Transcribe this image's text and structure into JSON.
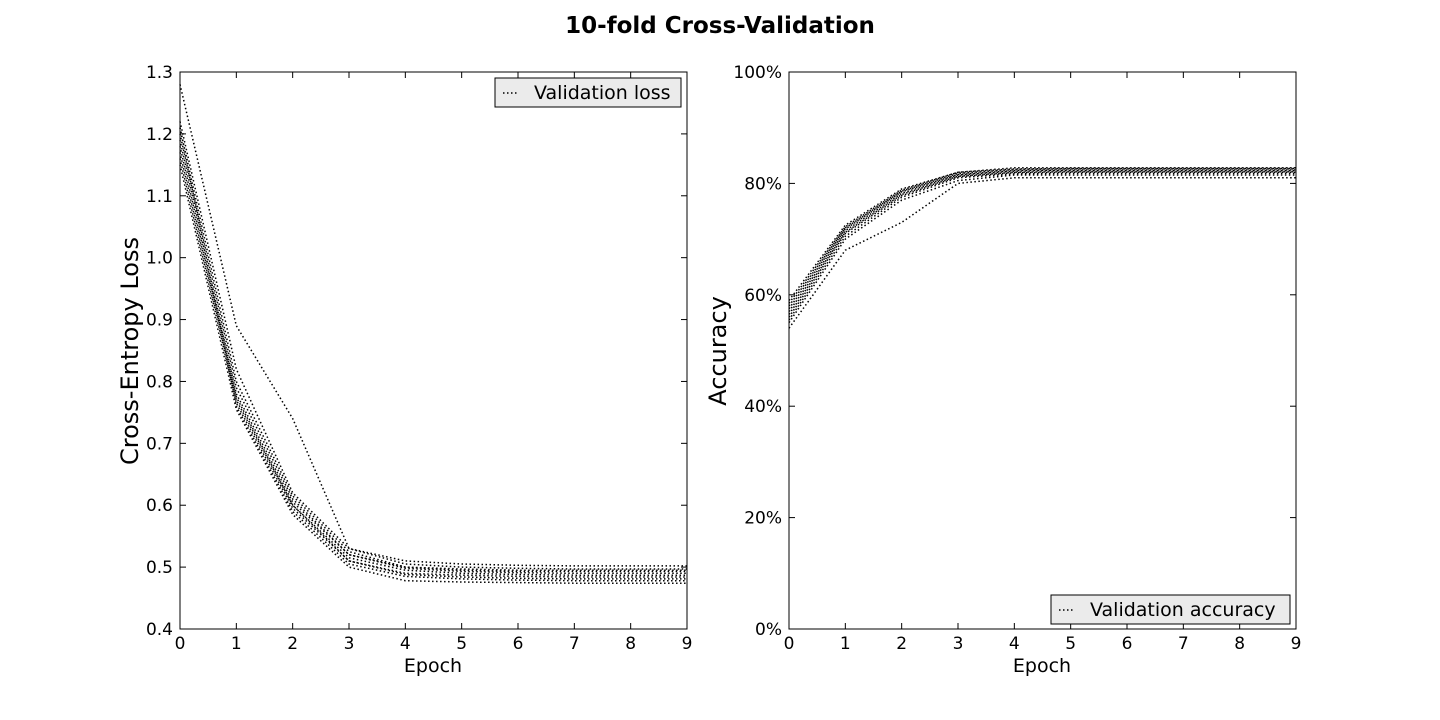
{
  "figure": {
    "title": "10-fold Cross-Validation"
  },
  "chart_data": [
    {
      "type": "line",
      "title": "",
      "xlabel": "Epoch",
      "ylabel": "Cross-Entropy Loss",
      "xlim": [
        0,
        9
      ],
      "ylim": [
        0.4,
        1.3
      ],
      "xticks": [
        0,
        1,
        2,
        3,
        4,
        5,
        6,
        7,
        8,
        9
      ],
      "yticks": [
        0.4,
        0.5,
        0.6,
        0.7,
        0.8,
        0.9,
        1.0,
        1.1,
        1.2,
        1.3
      ],
      "ytick_labels": [
        "0.4",
        "0.5",
        "0.6",
        "0.7",
        "0.8",
        "0.9",
        "1.0",
        "1.1",
        "1.2",
        "1.3"
      ],
      "grid": false,
      "legend": {
        "entries": [
          "Validation loss"
        ],
        "position": "top-right"
      },
      "line_style": "dotted",
      "x": [
        0,
        1,
        2,
        3,
        4,
        5,
        6,
        7,
        8,
        9
      ],
      "series": [
        {
          "values": [
            1.28,
            0.89,
            0.74,
            0.53,
            0.51,
            0.505,
            0.503,
            0.502,
            0.502,
            0.502
          ]
        },
        {
          "values": [
            1.22,
            0.82,
            0.62,
            0.53,
            0.505,
            0.5,
            0.498,
            0.497,
            0.497,
            0.497
          ]
        },
        {
          "values": [
            1.21,
            0.8,
            0.615,
            0.525,
            0.5,
            0.497,
            0.495,
            0.495,
            0.495,
            0.495
          ]
        },
        {
          "values": [
            1.2,
            0.79,
            0.61,
            0.52,
            0.5,
            0.495,
            0.493,
            0.493,
            0.493,
            0.493
          ]
        },
        {
          "values": [
            1.19,
            0.78,
            0.605,
            0.52,
            0.498,
            0.493,
            0.491,
            0.49,
            0.49,
            0.49
          ]
        },
        {
          "values": [
            1.18,
            0.775,
            0.6,
            0.515,
            0.495,
            0.49,
            0.488,
            0.487,
            0.487,
            0.487
          ]
        },
        {
          "values": [
            1.17,
            0.77,
            0.6,
            0.51,
            0.49,
            0.487,
            0.485,
            0.484,
            0.484,
            0.484
          ]
        },
        {
          "values": [
            1.16,
            0.765,
            0.595,
            0.51,
            0.488,
            0.484,
            0.482,
            0.481,
            0.481,
            0.481
          ]
        },
        {
          "values": [
            1.21,
            0.76,
            0.59,
            0.505,
            0.485,
            0.481,
            0.479,
            0.478,
            0.478,
            0.478
          ]
        },
        {
          "values": [
            1.15,
            0.755,
            0.585,
            0.5,
            0.478,
            0.476,
            0.475,
            0.474,
            0.474,
            0.474
          ]
        }
      ]
    },
    {
      "type": "line",
      "title": "",
      "xlabel": "Epoch",
      "ylabel": "Accuracy",
      "xlim": [
        0,
        9
      ],
      "ylim": [
        0,
        1.0
      ],
      "xticks": [
        0,
        1,
        2,
        3,
        4,
        5,
        6,
        7,
        8,
        9
      ],
      "yticks": [
        0,
        0.2,
        0.4,
        0.6,
        0.8,
        1.0
      ],
      "ytick_labels": [
        "0%",
        "20%",
        "40%",
        "60%",
        "80%",
        "100%"
      ],
      "grid": false,
      "legend": {
        "entries": [
          "Validation accuracy"
        ],
        "position": "bottom-right"
      },
      "line_style": "dotted",
      "x": [
        0,
        1,
        2,
        3,
        4,
        5,
        6,
        7,
        8,
        9
      ],
      "series": [
        {
          "values": [
            0.54,
            0.68,
            0.73,
            0.8,
            0.81,
            0.81,
            0.81,
            0.81,
            0.81,
            0.81
          ]
        },
        {
          "values": [
            0.55,
            0.7,
            0.77,
            0.805,
            0.815,
            0.815,
            0.815,
            0.815,
            0.815,
            0.815
          ]
        },
        {
          "values": [
            0.555,
            0.705,
            0.775,
            0.81,
            0.817,
            0.818,
            0.818,
            0.818,
            0.818,
            0.818
          ]
        },
        {
          "values": [
            0.56,
            0.71,
            0.778,
            0.812,
            0.819,
            0.82,
            0.82,
            0.82,
            0.82,
            0.82
          ]
        },
        {
          "values": [
            0.565,
            0.712,
            0.78,
            0.813,
            0.82,
            0.821,
            0.821,
            0.821,
            0.821,
            0.821
          ]
        },
        {
          "values": [
            0.57,
            0.715,
            0.782,
            0.815,
            0.822,
            0.823,
            0.823,
            0.823,
            0.823,
            0.823
          ]
        },
        {
          "values": [
            0.575,
            0.718,
            0.785,
            0.816,
            0.823,
            0.824,
            0.824,
            0.824,
            0.824,
            0.824
          ]
        },
        {
          "values": [
            0.58,
            0.72,
            0.786,
            0.818,
            0.825,
            0.826,
            0.826,
            0.826,
            0.826,
            0.826
          ]
        },
        {
          "values": [
            0.585,
            0.722,
            0.788,
            0.82,
            0.826,
            0.827,
            0.827,
            0.827,
            0.827,
            0.827
          ]
        },
        {
          "values": [
            0.59,
            0.725,
            0.79,
            0.82,
            0.828,
            0.828,
            0.828,
            0.828,
            0.828,
            0.828
          ]
        }
      ]
    }
  ]
}
